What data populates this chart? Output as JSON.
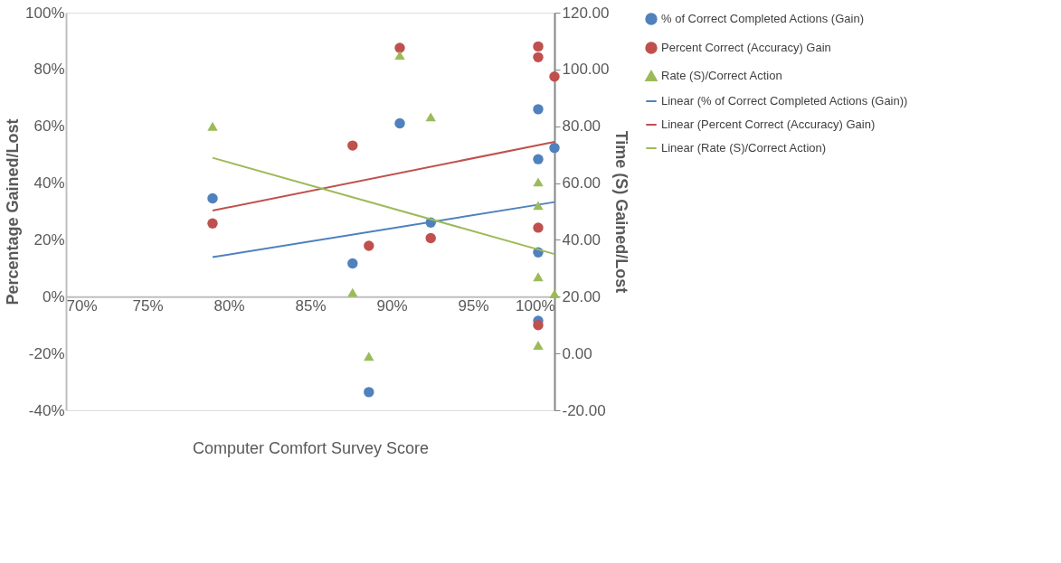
{
  "chart_data": {
    "type": "scatter",
    "xlabel": "Computer Comfort Survey Score",
    "ylabel": "Percentage Gained/Lost",
    "y2label": "Time (S) Gained/Lost",
    "xlim": [
      70,
      100
    ],
    "xticks": [
      {
        "value": 70,
        "label": "70%"
      },
      {
        "value": 75,
        "label": "75%"
      },
      {
        "value": 80,
        "label": "80%"
      },
      {
        "value": 85,
        "label": "85%"
      },
      {
        "value": 90,
        "label": "90%"
      },
      {
        "value": 95,
        "label": "95%"
      },
      {
        "value": 100,
        "label": "100%"
      }
    ],
    "ylim": [
      -40,
      100
    ],
    "yticks": [
      {
        "value": -40,
        "label": "-40%"
      },
      {
        "value": -20,
        "label": "-20%"
      },
      {
        "value": 0,
        "label": "0%"
      },
      {
        "value": 20,
        "label": "20%"
      },
      {
        "value": 40,
        "label": "40%"
      },
      {
        "value": 60,
        "label": "60%"
      },
      {
        "value": 80,
        "label": "80%"
      },
      {
        "value": 100,
        "label": "100%"
      }
    ],
    "y2lim": [
      -20,
      120
    ],
    "y2ticks": [
      {
        "value": -20,
        "label": "-20.00"
      },
      {
        "value": 0,
        "label": "0.00"
      },
      {
        "value": 20,
        "label": "20.00"
      },
      {
        "value": 40,
        "label": "40.00"
      },
      {
        "value": 60,
        "label": "60.00"
      },
      {
        "value": 80,
        "label": "80.00"
      },
      {
        "value": 100,
        "label": "100.00"
      },
      {
        "value": 120,
        "label": "120.00"
      }
    ],
    "grid": false,
    "legend": "right",
    "series": [
      {
        "name": "% of Correct Completed Actions (Gain)",
        "marker": "circle",
        "color": "#4f81bd",
        "x": [
          79.0,
          87.6,
          88.6,
          90.5,
          92.4,
          99.0,
          100,
          99.0,
          99.0,
          99.0
        ],
        "values": [
          34.6,
          11.7,
          -33.6,
          61,
          26.1,
          66.0,
          52.4,
          48.4,
          15.6,
          -8.5
        ]
      },
      {
        "name": "Percent Correct (Accuracy) Gain",
        "marker": "circle",
        "color": "#c0504d",
        "x": [
          79.0,
          87.6,
          88.6,
          90.5,
          92.4,
          99.0,
          99.0,
          100,
          99.0,
          99.0
        ],
        "values": [
          25.8,
          53.2,
          17.9,
          87.6,
          20.6,
          88.1,
          84.3,
          77.5,
          24.3,
          -10.0
        ]
      },
      {
        "name": "Rate (S)/Correct Action",
        "marker": "triangle",
        "axis": "y2",
        "color": "#9bbb59",
        "x": [
          79.0,
          87.6,
          88.6,
          90.5,
          92.4,
          99.0,
          99.0,
          99.0,
          100,
          99.0
        ],
        "values": [
          80,
          21.5,
          -1,
          105,
          83.3,
          60.4,
          52.1,
          27.0,
          21.0,
          2.9
        ]
      },
      {
        "name": "Linear (% of Correct Completed Actions (Gain))",
        "type": "line",
        "marker": "none",
        "color": "#4f81bd",
        "x": [
          79.0,
          100
        ],
        "values": [
          13.9,
          33.3
        ]
      },
      {
        "name": "Linear (Percent Correct (Accuracy) Gain)",
        "type": "line",
        "marker": "none",
        "color": "#c0504d",
        "x": [
          79.0,
          100
        ],
        "values": [
          30.3,
          54.5
        ]
      },
      {
        "name": "Linear (Rate (S)/Correct Action)",
        "type": "line",
        "marker": "none",
        "axis": "y2",
        "color": "#9bbb59",
        "x": [
          79.0,
          100
        ],
        "values": [
          68.9,
          35.0
        ]
      }
    ]
  }
}
